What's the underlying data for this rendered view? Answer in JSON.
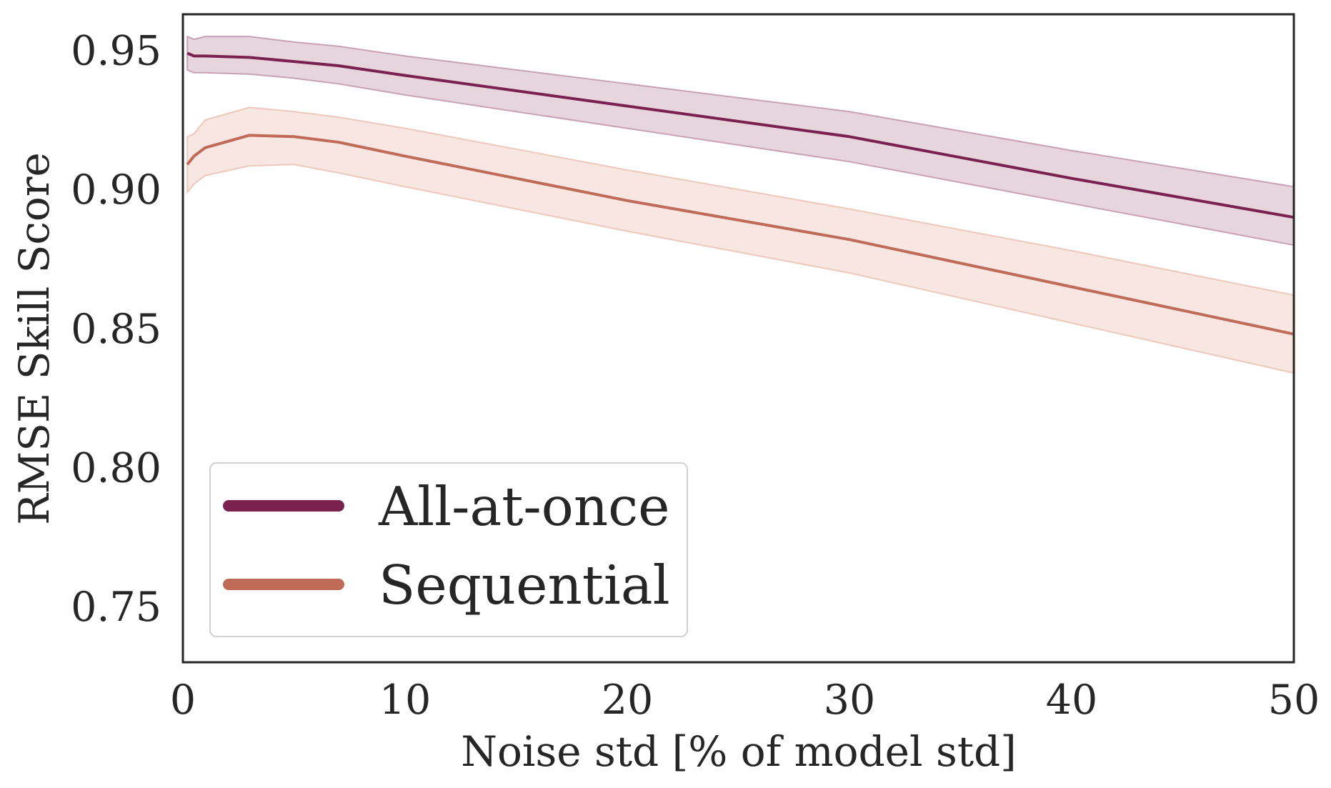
{
  "chart_data": {
    "type": "line",
    "title": "",
    "xlabel": "Noise std [% of model std]",
    "ylabel": "RMSE Skill Score",
    "xlim": [
      0,
      50
    ],
    "ylim": [
      0.73,
      0.963
    ],
    "xticks": [
      0,
      10,
      20,
      30,
      40,
      50
    ],
    "xtick_labels": [
      "0",
      "10",
      "20",
      "30",
      "40",
      "50"
    ],
    "yticks": [
      0.75,
      0.8,
      0.85,
      0.9,
      0.95
    ],
    "ytick_labels": [
      "0.75",
      "0.80",
      "0.85",
      "0.90",
      "0.95"
    ],
    "grid": false,
    "legend_position": "lower-left",
    "x": [
      0.2,
      0.5,
      1,
      3,
      5,
      7,
      10,
      20,
      30,
      40,
      50
    ],
    "series": [
      {
        "name": "All-at-once",
        "color": "#7B2150",
        "band_color": "#C9A1B5",
        "values": [
          0.949,
          0.948,
          0.948,
          0.9475,
          0.946,
          0.9445,
          0.941,
          0.93,
          0.919,
          0.904,
          0.89
        ],
        "lower": [
          0.943,
          0.942,
          0.942,
          0.9415,
          0.94,
          0.938,
          0.934,
          0.922,
          0.91,
          0.895,
          0.88
        ],
        "upper": [
          0.955,
          0.954,
          0.955,
          0.955,
          0.953,
          0.9515,
          0.948,
          0.938,
          0.928,
          0.914,
          0.901
        ]
      },
      {
        "name": "Sequential",
        "color": "#C06A58",
        "band_color": "#EDC8BC",
        "values": [
          0.909,
          0.912,
          0.915,
          0.9195,
          0.919,
          0.917,
          0.912,
          0.896,
          0.882,
          0.865,
          0.848
        ],
        "lower": [
          0.899,
          0.902,
          0.905,
          0.9085,
          0.909,
          0.906,
          0.901,
          0.885,
          0.87,
          0.852,
          0.834
        ],
        "upper": [
          0.919,
          0.92,
          0.925,
          0.9295,
          0.928,
          0.926,
          0.922,
          0.907,
          0.893,
          0.878,
          0.862
        ]
      }
    ]
  }
}
